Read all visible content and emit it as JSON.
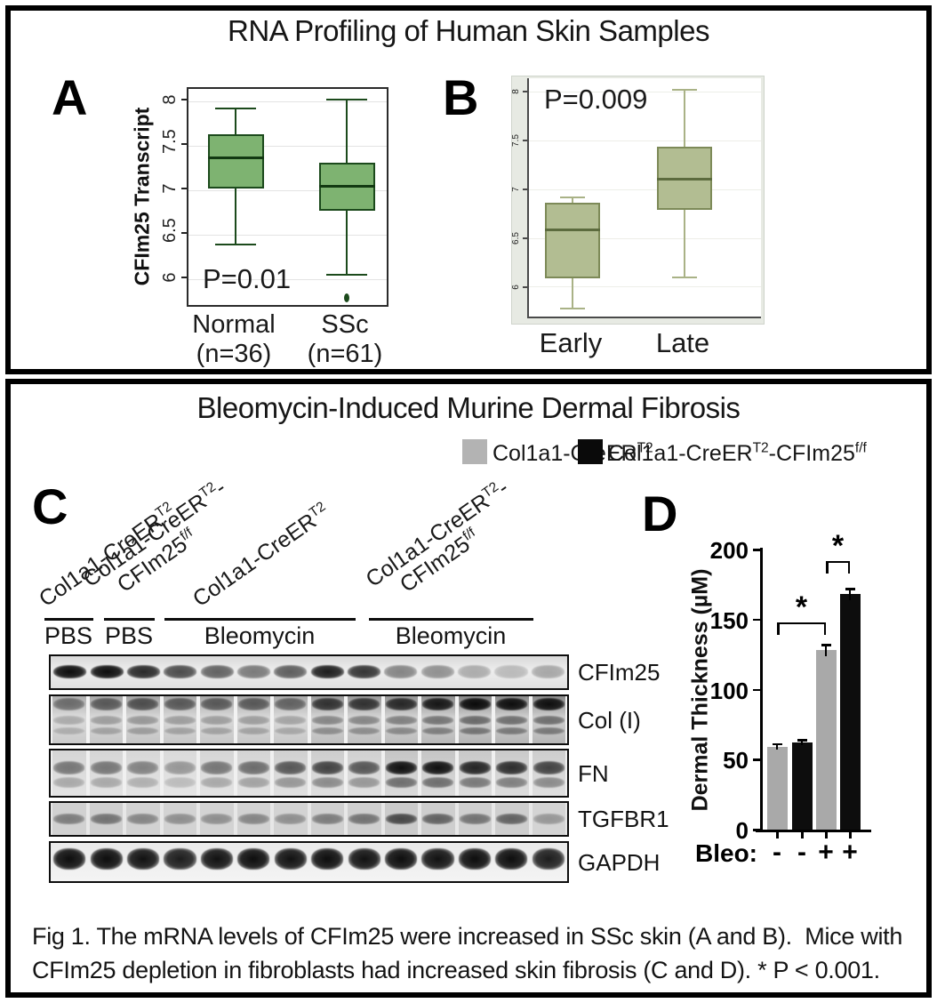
{
  "top_section": {
    "title": "RNA Profiling of Human Skin Samples",
    "panel_a_label": "A",
    "panel_b_label": "B"
  },
  "bottom_section": {
    "title": "Bleomycin-Induced Murine Dermal Fibrosis",
    "panel_c_label": "C",
    "panel_d_label": "D",
    "legend": [
      {
        "label": "Col1a1-CreER^{T2}",
        "color": "#b3b3b3"
      },
      {
        "label": "Col1a1-CreER^{T2}-CFIm25^{f/f}",
        "color": "#0a0a0a"
      }
    ],
    "caption_lines": [
      "Fig 1. The mRNA levels of CFIm25 were increased in SSc skin (A and B).  Mice with",
      "CFIm25 depletion in fibroblasts had increased skin fibrosis (C and D). * P < 0.001."
    ]
  },
  "western_blot": {
    "groups": [
      {
        "diagonal_label_lines": [
          "Col1a1-CreER^{T2}"
        ],
        "treatment": "PBS"
      },
      {
        "diagonal_label_lines": [
          "Col1a1-CreER^{T2}-",
          "CFIm25^{f/f}"
        ],
        "treatment": "PBS"
      },
      {
        "diagonal_label_lines": [
          "Col1a1-CreER^{T2}"
        ],
        "treatment": "Bleomycin"
      },
      {
        "diagonal_label_lines": [
          "Col1a1-CreER^{T2}-",
          "CFIm25^{f/f}"
        ],
        "treatment": "Bleomycin"
      }
    ],
    "rows": [
      {
        "label": "CFIm25",
        "lane_intensities": [
          0.97,
          1.0,
          0.85,
          0.7,
          0.6,
          0.5,
          0.62,
          0.9,
          0.8,
          0.45,
          0.4,
          0.28,
          0.22,
          0.3
        ]
      },
      {
        "label": "Col (I)",
        "lane_intensities": [
          0.45,
          0.55,
          0.6,
          0.55,
          0.55,
          0.55,
          0.5,
          0.75,
          0.75,
          0.8,
          0.9,
          1.0,
          0.95,
          0.95
        ]
      },
      {
        "label": "FN",
        "lane_intensities": [
          0.5,
          0.5,
          0.45,
          0.35,
          0.5,
          0.55,
          0.65,
          0.75,
          0.65,
          1.0,
          1.0,
          0.9,
          0.85,
          0.75
        ]
      },
      {
        "label": "TGFBR1",
        "lane_intensities": [
          0.5,
          0.55,
          0.45,
          0.4,
          0.4,
          0.45,
          0.4,
          0.5,
          0.55,
          0.8,
          0.65,
          0.55,
          0.65,
          0.35
        ]
      },
      {
        "label": "GAPDH",
        "lane_intensities": [
          1.0,
          1.0,
          0.95,
          0.9,
          0.95,
          1.0,
          0.95,
          1.0,
          0.95,
          1.0,
          0.95,
          1.0,
          1.0,
          0.9
        ]
      }
    ]
  },
  "chart_data": [
    {
      "id": "panel_a",
      "type": "boxplot",
      "p_label": "P=0.01",
      "ylabel": "CFIm25 Transcript",
      "ylim": [
        5.67,
        8.14
      ],
      "yticks": [
        6,
        6.5,
        7,
        7.5,
        8
      ],
      "categories": [
        [
          "Normal",
          "(n=36)"
        ],
        [
          "SSc",
          "(n=61)"
        ]
      ],
      "boxes": [
        {
          "whislo": 6.39,
          "q1": 7.02,
          "med": 7.37,
          "q3": 7.63,
          "whishi": 7.92,
          "fliers": []
        },
        {
          "whislo": 6.05,
          "q1": 6.77,
          "med": 7.05,
          "q3": 7.31,
          "whishi": 8.02,
          "fliers": [
            5.79
          ]
        }
      ],
      "box_fill": "#7eb371",
      "box_edge": "#1c4a1c",
      "median_color": "#123912",
      "whisker_color": "#1c4a1c",
      "grid": "#e3e3e3"
    },
    {
      "id": "panel_b",
      "type": "boxplot",
      "p_label": "P=0.009",
      "ylabel": "",
      "ylim": [
        5.68,
        8.14
      ],
      "yticks": [
        6,
        6.5,
        7,
        7.5,
        8
      ],
      "categories": [
        [
          "Early"
        ],
        [
          "Late"
        ]
      ],
      "boxes": [
        {
          "whislo": 5.78,
          "q1": 6.09,
          "med": 6.59,
          "q3": 6.86,
          "whishi": 6.92,
          "fliers": []
        },
        {
          "whislo": 6.1,
          "q1": 6.79,
          "med": 7.11,
          "q3": 7.44,
          "whishi": 8.02,
          "fliers": []
        }
      ],
      "box_fill": "#b2bd92",
      "box_edge": "#7d8a58",
      "median_color": "#5c6b3e",
      "whisker_color": "#a9b286",
      "grid": "#edeee8"
    },
    {
      "id": "panel_d",
      "type": "bar",
      "ylabel": "Dermal Thickness (µM)",
      "ylim": [
        0,
        200
      ],
      "yticks": [
        0,
        50,
        100,
        150,
        200
      ],
      "x_axis_title": "Bleo:",
      "categories": [
        "-",
        "-",
        "+",
        "+"
      ],
      "values": [
        59,
        62,
        128,
        168
      ],
      "errors": [
        2,
        2,
        4,
        4
      ],
      "bar_colors": [
        "#a9a9a9",
        "#0d0d0d",
        "#a9a9a9",
        "#0d0d0d"
      ],
      "significance": [
        {
          "from_bar": 0,
          "to_bar": 2,
          "at_value": 148,
          "label": "*"
        },
        {
          "from_bar": 2,
          "to_bar": 3,
          "at_value": 192,
          "label": "*"
        }
      ]
    }
  ]
}
